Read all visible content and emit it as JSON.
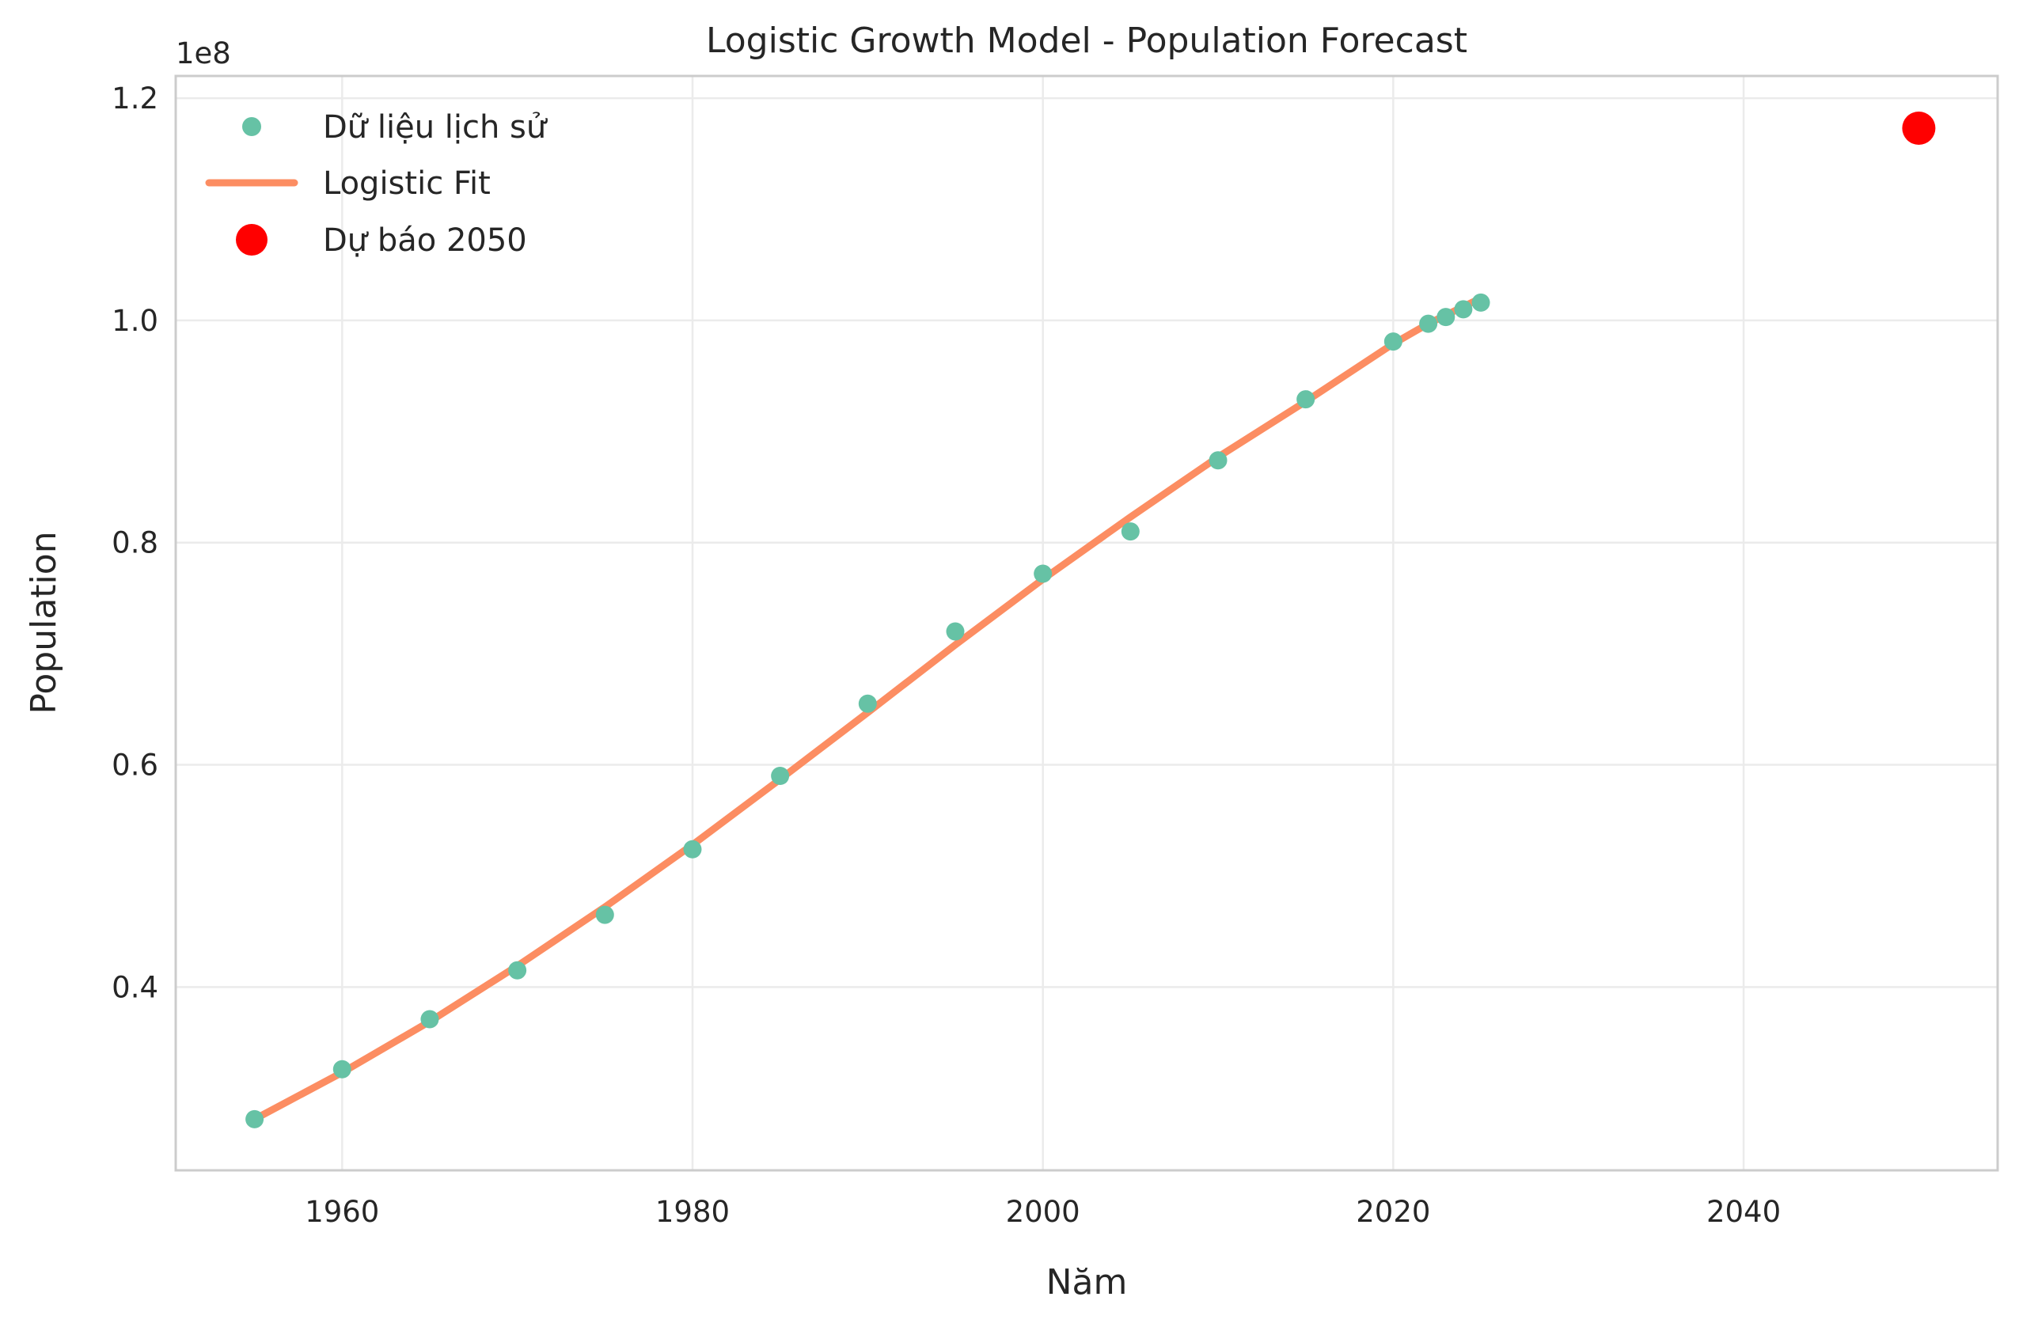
{
  "chart_data": {
    "type": "line",
    "title": "Logistic Growth Model - Population Forecast",
    "xlabel": "Năm",
    "ylabel": "Population",
    "y_offset_label": "1e8",
    "y_scale_factor": 100000000,
    "xlim": [
      1950.5,
      2054.5
    ],
    "ylim": [
      0.235,
      1.22
    ],
    "x_ticks": [
      1960,
      1980,
      2000,
      2020,
      2040
    ],
    "x_tick_labels": [
      "1960",
      "1980",
      "2000",
      "2020",
      "2040"
    ],
    "y_ticks": [
      0.4,
      0.6,
      0.8,
      1.0,
      1.2
    ],
    "y_tick_labels": [
      "0.4",
      "0.6",
      "0.8",
      "1.0",
      "1.2"
    ],
    "grid": true,
    "legend_position": "top-left",
    "series": [
      {
        "name": "Dữ liệu lịch sử",
        "kind": "scatter",
        "color": "#66c2a5",
        "x": [
          1955,
          1960,
          1965,
          1970,
          1975,
          1980,
          1985,
          1990,
          1995,
          2000,
          2005,
          2010,
          2015,
          2020,
          2022,
          2023,
          2024,
          2025
        ],
        "y": [
          0.281,
          0.326,
          0.371,
          0.415,
          0.465,
          0.524,
          0.59,
          0.655,
          0.72,
          0.772,
          0.81,
          0.874,
          0.929,
          0.981,
          0.997,
          1.003,
          1.01,
          1.016
        ]
      },
      {
        "name": "Logistic Fit",
        "kind": "line",
        "color": "#fc8d62",
        "x": [
          1955,
          1960,
          1965,
          1970,
          1975,
          1980,
          1985,
          1990,
          1995,
          2000,
          2005,
          2010,
          2015,
          2020,
          2022,
          2025
        ],
        "y": [
          0.281,
          0.323,
          0.369,
          0.419,
          0.472,
          0.528,
          0.587,
          0.647,
          0.708,
          0.767,
          0.823,
          0.877,
          0.927,
          0.979,
          0.997,
          1.02
        ]
      },
      {
        "name": "Dự báo 2050",
        "kind": "point",
        "color": "#ff0000",
        "x": [
          2050
        ],
        "y": [
          1.173
        ]
      }
    ]
  }
}
